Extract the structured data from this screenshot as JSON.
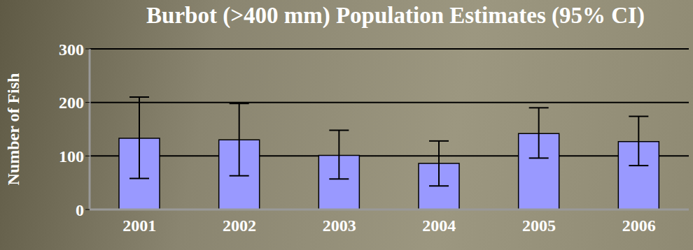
{
  "chart_data": {
    "type": "bar",
    "title": "Burbot (>400 mm) Population Estimates (95% CI)",
    "y_label": "Number of Fish",
    "categories": [
      "2001",
      "2002",
      "2003",
      "2004",
      "2005",
      "2006"
    ],
    "values": [
      133,
      130,
      101,
      86,
      142,
      127
    ],
    "ci_low": [
      58,
      63,
      57,
      44,
      96,
      82
    ],
    "ci_high": [
      210,
      198,
      148,
      128,
      190,
      174
    ],
    "color": "#9999ff",
    "ylim": [
      0,
      300
    ],
    "yticks": [
      0,
      100,
      200,
      300
    ],
    "grid": true
  }
}
